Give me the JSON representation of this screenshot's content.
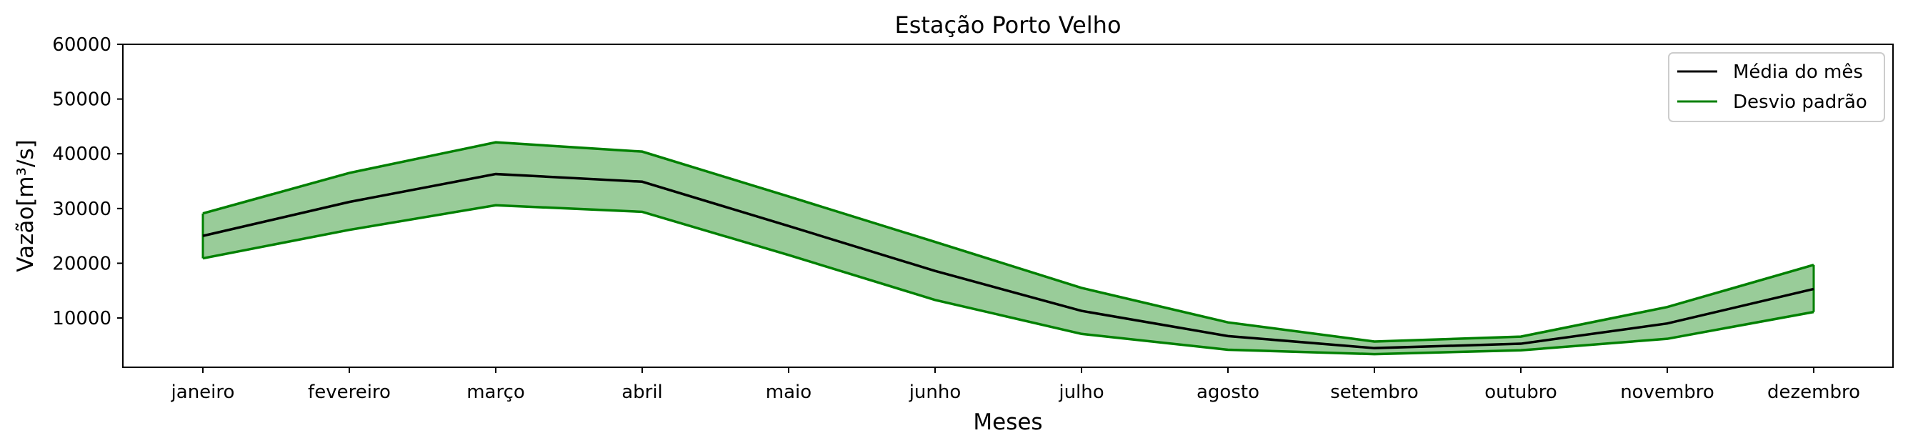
{
  "chart_data": {
    "type": "line",
    "title": "Estação Porto Velho",
    "xlabel": "Meses",
    "ylabel": "Vazão[m³/s]",
    "ylim": [
      1000,
      60000
    ],
    "yticks": [
      10000,
      20000,
      30000,
      40000,
      50000,
      60000
    ],
    "categories": [
      "janeiro",
      "fevereiro",
      "março",
      "abril",
      "maio",
      "junho",
      "julho",
      "agosto",
      "setembro",
      "outubro",
      "novembro",
      "dezembro"
    ],
    "series": [
      {
        "name": "Média do mês",
        "color": "#000000",
        "values": [
          25000,
          31200,
          36300,
          34900,
          26800,
          18600,
          11300,
          6700,
          4500,
          5300,
          9000,
          15300
        ]
      },
      {
        "name": "Desvio padrão",
        "color": "#008000",
        "fill": "#99cc99",
        "upper": [
          29100,
          36500,
          42100,
          40400,
          32200,
          23900,
          15500,
          9200,
          5700,
          6600,
          12000,
          19700
        ],
        "lower": [
          20900,
          26100,
          30600,
          29400,
          21500,
          13300,
          7100,
          4200,
          3400,
          4100,
          6200,
          11100
        ]
      }
    ],
    "grid": false,
    "legend_position": "top-right"
  }
}
